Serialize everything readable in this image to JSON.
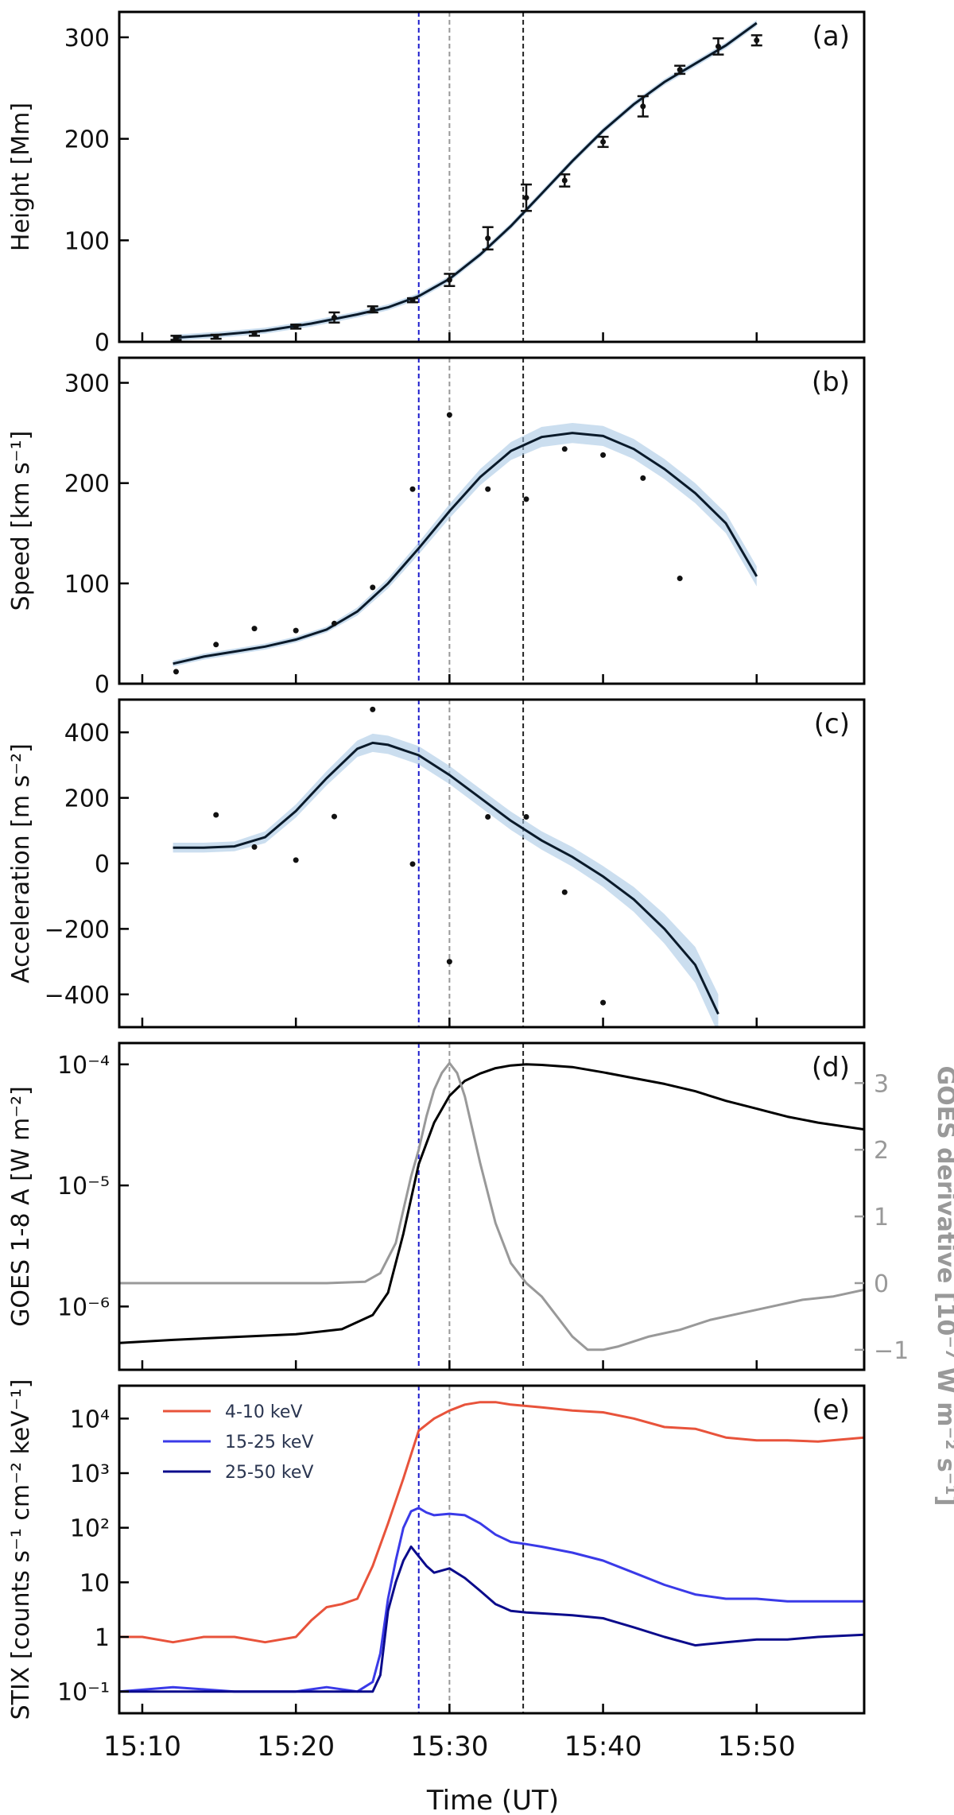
{
  "figure": {
    "xlabel": "Time (UT)",
    "xticks": [
      "15:10",
      "15:20",
      "15:30",
      "15:40",
      "15:50"
    ],
    "xtick_values": [
      10,
      20,
      30,
      40,
      50
    ],
    "xlim": [
      8.5,
      57
    ]
  },
  "vlines": [
    {
      "name": "vline-blue",
      "x": 28.0,
      "color": "#1a1acc"
    },
    {
      "name": "vline-gray",
      "x": 30.0,
      "color": "#999999"
    },
    {
      "name": "vline-black",
      "x": 34.8,
      "color": "#222222"
    }
  ],
  "chart_data": [
    {
      "id": "a",
      "type": "scatter",
      "panel_label": "(a)",
      "ylabel": "Height [Mm]",
      "ylim": [
        0,
        325
      ],
      "yticks": [
        0,
        100,
        200,
        300
      ],
      "yticklabels": [
        "0",
        "100",
        "200",
        "300"
      ],
      "points": [
        [
          12.2,
          4
        ],
        [
          14.8,
          5
        ],
        [
          17.3,
          8
        ],
        [
          20.0,
          15
        ],
        [
          22.5,
          24
        ],
        [
          25.0,
          32
        ],
        [
          27.6,
          41
        ],
        [
          30.0,
          61
        ],
        [
          32.5,
          102
        ],
        [
          35.0,
          142
        ],
        [
          37.5,
          159
        ],
        [
          40.0,
          197
        ],
        [
          42.6,
          232
        ],
        [
          45.0,
          268
        ],
        [
          47.5,
          291
        ],
        [
          50.0,
          297
        ]
      ],
      "errors": [
        2,
        2,
        2,
        2,
        5,
        3,
        2,
        6,
        11,
        13,
        6,
        5,
        10,
        4,
        8,
        5
      ],
      "fit": [
        [
          12,
          4
        ],
        [
          15,
          7
        ],
        [
          18,
          11
        ],
        [
          21,
          18
        ],
        [
          24,
          27
        ],
        [
          26,
          34
        ],
        [
          28,
          45
        ],
        [
          30,
          62
        ],
        [
          32,
          86
        ],
        [
          34,
          114
        ],
        [
          36,
          146
        ],
        [
          38,
          178
        ],
        [
          40,
          208
        ],
        [
          42,
          234
        ],
        [
          44,
          256
        ],
        [
          46,
          274
        ],
        [
          48,
          292
        ],
        [
          50,
          314
        ]
      ],
      "band": 3
    },
    {
      "id": "b",
      "type": "scatter",
      "panel_label": "(b)",
      "ylabel": "Speed [km s⁻¹]",
      "ylim": [
        0,
        325
      ],
      "yticks": [
        0,
        100,
        200,
        300
      ],
      "yticklabels": [
        "0",
        "100",
        "200",
        "300"
      ],
      "points": [
        [
          12.2,
          12
        ],
        [
          14.8,
          39
        ],
        [
          17.3,
          55
        ],
        [
          20.0,
          53
        ],
        [
          22.5,
          60
        ],
        [
          25.0,
          96
        ],
        [
          27.6,
          194
        ],
        [
          30.0,
          268
        ],
        [
          32.5,
          194
        ],
        [
          35.0,
          184
        ],
        [
          37.5,
          234
        ],
        [
          40.0,
          228
        ],
        [
          42.6,
          205
        ],
        [
          45.0,
          105
        ]
      ],
      "fit": [
        [
          12,
          20
        ],
        [
          14,
          27
        ],
        [
          16,
          32
        ],
        [
          18,
          37
        ],
        [
          20,
          44
        ],
        [
          22,
          54
        ],
        [
          24,
          72
        ],
        [
          26,
          100
        ],
        [
          28,
          135
        ],
        [
          30,
          172
        ],
        [
          32,
          206
        ],
        [
          34,
          232
        ],
        [
          36,
          246
        ],
        [
          38,
          250
        ],
        [
          40,
          247
        ],
        [
          42,
          234
        ],
        [
          44,
          214
        ],
        [
          46,
          190
        ],
        [
          48,
          160
        ],
        [
          50,
          107
        ]
      ],
      "band_half": [
        3,
        3,
        3,
        3,
        3,
        3,
        4,
        5,
        6,
        7,
        8,
        9,
        10,
        10,
        10,
        10,
        10,
        10,
        10,
        10
      ]
    },
    {
      "id": "c",
      "type": "scatter",
      "panel_label": "(c)",
      "ylabel": "Acceleration [m s⁻²]",
      "ylim": [
        -500,
        500
      ],
      "yticks": [
        -400,
        -200,
        0,
        200,
        400
      ],
      "yticklabels": [
        "−400",
        "−200",
        "0",
        "200",
        "400"
      ],
      "points": [
        [
          14.8,
          148
        ],
        [
          17.3,
          50
        ],
        [
          20.0,
          10
        ],
        [
          22.5,
          143
        ],
        [
          25.0,
          470
        ],
        [
          27.6,
          -2
        ],
        [
          30.0,
          -300
        ],
        [
          32.5,
          142
        ],
        [
          35.0,
          142
        ],
        [
          37.5,
          -88
        ],
        [
          40.0,
          -425
        ]
      ],
      "fit": [
        [
          12,
          48
        ],
        [
          14,
          48
        ],
        [
          16,
          52
        ],
        [
          18,
          80
        ],
        [
          20,
          160
        ],
        [
          22,
          260
        ],
        [
          24,
          350
        ],
        [
          25,
          368
        ],
        [
          26,
          362
        ],
        [
          28,
          330
        ],
        [
          30,
          270
        ],
        [
          32,
          200
        ],
        [
          34,
          130
        ],
        [
          36,
          70
        ],
        [
          38,
          20
        ],
        [
          40,
          -40
        ],
        [
          42,
          -110
        ],
        [
          44,
          -200
        ],
        [
          46,
          -310
        ],
        [
          47.5,
          -460
        ]
      ],
      "band_half": [
        15,
        15,
        15,
        18,
        20,
        22,
        25,
        28,
        28,
        28,
        28,
        28,
        28,
        28,
        30,
        32,
        38,
        45,
        55,
        60
      ]
    },
    {
      "id": "d",
      "type": "line",
      "panel_label": "(d)",
      "ylabel": "GOES 1-8 A [W m⁻²]",
      "ylabel_right": "GOES derivative [10⁻⁷ W m⁻² s⁻¹]",
      "yscale": "log",
      "ylim": [
        3e-07,
        0.00015
      ],
      "yticks": [
        1e-06,
        1e-05,
        0.0001
      ],
      "yticklabels": [
        "10⁻⁶",
        "10⁻⁵",
        "10⁻⁴"
      ],
      "ylim_right": [
        -1.3,
        3.6
      ],
      "yticks_right": [
        -1,
        0,
        1,
        2,
        3
      ],
      "yticklabels_right": [
        "−1",
        "0",
        "1",
        "2",
        "3"
      ],
      "series": [
        {
          "name": "GOES 1-8 A flux",
          "color": "#000000",
          "axis": "left",
          "x": [
            8.5,
            12,
            16,
            20,
            23,
            25,
            26,
            27,
            28,
            29,
            30,
            31,
            32,
            33,
            34,
            35,
            36,
            38,
            40,
            42,
            44,
            46,
            48,
            50,
            52,
            54,
            57
          ],
          "values": [
            5e-07,
            5.3e-07,
            5.6e-07,
            5.9e-07,
            6.5e-07,
            8.5e-07,
            1.3e-06,
            4e-06,
            1.5e-05,
            3.3e-05,
            5.5e-05,
            7.3e-05,
            8.4e-05,
            9.3e-05,
            9.8e-05,
            0.0001,
            9.9e-05,
            9.5e-05,
            8.6e-05,
            7.7e-05,
            6.9e-05,
            6e-05,
            5e-05,
            4.3e-05,
            3.7e-05,
            3.3e-05,
            2.9e-05
          ]
        },
        {
          "name": "GOES derivative",
          "color": "#999999",
          "axis": "right",
          "x": [
            8.5,
            15,
            22,
            24.5,
            25.5,
            26.5,
            27,
            27.5,
            28,
            28.5,
            29,
            29.5,
            30,
            30.5,
            31,
            32,
            33,
            34,
            35,
            36,
            37,
            38,
            39,
            40,
            41,
            43,
            45,
            47,
            49,
            51,
            53,
            55,
            57
          ],
          "values": [
            0,
            0,
            0,
            0.02,
            0.15,
            0.6,
            1.1,
            1.6,
            2.0,
            2.5,
            2.9,
            3.15,
            3.3,
            3.15,
            2.8,
            1.8,
            0.9,
            0.3,
            0,
            -0.2,
            -0.5,
            -0.8,
            -1.0,
            -1.0,
            -0.95,
            -0.8,
            -0.7,
            -0.55,
            -0.45,
            -0.35,
            -0.25,
            -0.2,
            -0.1
          ]
        }
      ]
    },
    {
      "id": "e",
      "type": "line",
      "panel_label": "(e)",
      "ylabel": "STIX [counts s⁻¹ cm⁻² keV⁻¹]",
      "yscale": "log",
      "ylim": [
        0.04,
        40000
      ],
      "yticks": [
        0.1,
        1,
        10,
        100,
        1000,
        10000
      ],
      "yticklabels": [
        "10⁻¹",
        "1",
        "10",
        "10²",
        "10³",
        "10⁴"
      ],
      "legend_location": "upper-left",
      "series": [
        {
          "name": "4-10 keV",
          "color": "#e8533b",
          "x": [
            8.5,
            10,
            12,
            14,
            16,
            18,
            20,
            21,
            22,
            23,
            24,
            25,
            26,
            27,
            28,
            29,
            30,
            31,
            32,
            33,
            34,
            35,
            36,
            38,
            40,
            42,
            44,
            46,
            48,
            50,
            52,
            54,
            57
          ],
          "values": [
            1,
            1,
            0.8,
            1,
            1,
            0.8,
            1,
            2,
            3.5,
            4,
            5,
            20,
            120,
            800,
            6000,
            10000,
            14000,
            18000,
            20000,
            20000,
            18000,
            17000,
            16000,
            14000,
            13000,
            10000,
            7000,
            6500,
            4500,
            4000,
            4000,
            3800,
            4500
          ]
        },
        {
          "name": "15-25 keV",
          "color": "#3a3ae8",
          "x": [
            8.5,
            12,
            16,
            20,
            22,
            24,
            25,
            25.5,
            26,
            26.5,
            27,
            27.5,
            28,
            28.5,
            29,
            30,
            31,
            32,
            33,
            34,
            35,
            36,
            38,
            40,
            42,
            44,
            46,
            48,
            50,
            52,
            54,
            57
          ],
          "values": [
            0.1,
            0.12,
            0.1,
            0.1,
            0.12,
            0.1,
            0.15,
            0.5,
            5,
            25,
            100,
            200,
            230,
            190,
            170,
            180,
            170,
            120,
            75,
            55,
            50,
            45,
            35,
            25,
            15,
            9,
            6,
            5,
            5,
            4.5,
            4.5,
            4.5
          ]
        },
        {
          "name": "25-50 keV",
          "color": "#0b0b8c",
          "x": [
            8.5,
            12,
            16,
            20,
            24,
            25,
            25.5,
            26,
            26.5,
            27,
            27.5,
            28,
            28.5,
            29,
            30,
            31,
            32,
            33,
            34,
            35,
            36,
            38,
            40,
            42,
            44,
            46,
            48,
            50,
            52,
            54,
            57
          ],
          "values": [
            0.1,
            0.1,
            0.1,
            0.1,
            0.1,
            0.1,
            0.2,
            3,
            10,
            25,
            45,
            30,
            20,
            15,
            18,
            12,
            7,
            4,
            3,
            2.8,
            2.7,
            2.5,
            2.2,
            1.5,
            1.0,
            0.7,
            0.8,
            0.9,
            0.9,
            1.0,
            1.1
          ]
        }
      ]
    }
  ]
}
